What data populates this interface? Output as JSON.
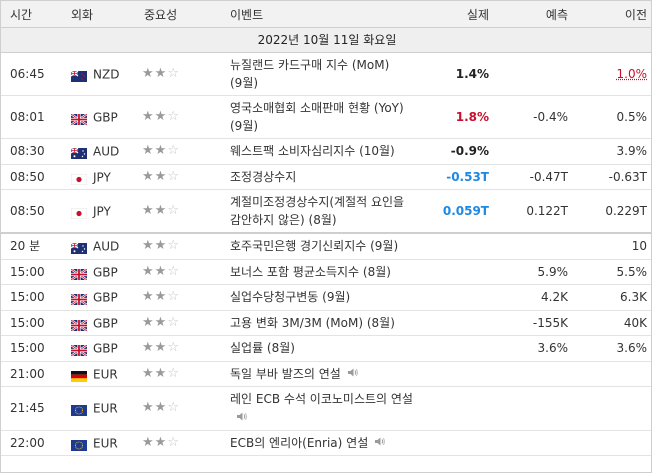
{
  "headers": {
    "time": "시간",
    "currency": "외화",
    "importance": "중요성",
    "event": "이벤트",
    "actual": "실제",
    "forecast": "예측",
    "previous": "이전"
  },
  "day_label": "2022년 10월 11일 화요일",
  "rows": [
    {
      "time": "06:45",
      "flag": "nz",
      "currency": "NZD",
      "stars": 2,
      "event": "뉴질랜드 카드구매 지수 (MoM) (9월)",
      "actual": "1.4%",
      "actual_color": "black",
      "forecast": "",
      "previous": "1.0%",
      "previous_color": "red"
    },
    {
      "time": "08:01",
      "flag": "gb",
      "currency": "GBP",
      "stars": 2,
      "event": "영국소매협회 소매판매 현황 (YoY) (9월)",
      "actual": "1.8%",
      "actual_color": "red",
      "forecast": "-0.4%",
      "previous": "0.5%"
    },
    {
      "time": "08:30",
      "flag": "au",
      "currency": "AUD",
      "stars": 2,
      "event": "웨스트팩 소비자심리지수 (10월)",
      "actual": "-0.9%",
      "actual_color": "black",
      "forecast": "",
      "previous": "3.9%"
    },
    {
      "time": "08:50",
      "flag": "jp",
      "currency": "JPY",
      "stars": 2,
      "event": "조정경상수지",
      "actual": "-0.53T",
      "actual_color": "blue",
      "forecast": "-0.47T",
      "previous": "-0.63T"
    },
    {
      "time": "08:50",
      "flag": "jp",
      "currency": "JPY",
      "stars": 2,
      "event": "계절미조정경상수지(계절적 요인을 감안하지 않은) (8월)",
      "actual": "0.059T",
      "actual_color": "blue",
      "forecast": "0.122T",
      "previous": "0.229T"
    },
    {
      "time": "20 분",
      "flag": "au",
      "currency": "AUD",
      "stars": 2,
      "event": "호주국민은행 경기신뢰지수 (9월)",
      "actual": "",
      "actual_color": "black",
      "forecast": "",
      "previous": "10",
      "gap": true
    },
    {
      "time": "15:00",
      "flag": "gb",
      "currency": "GBP",
      "stars": 2,
      "event": "보너스 포함 평균소득지수 (8월)",
      "actual": "",
      "actual_color": "black",
      "forecast": "5.9%",
      "previous": "5.5%"
    },
    {
      "time": "15:00",
      "flag": "gb",
      "currency": "GBP",
      "stars": 2,
      "event": "실업수당청구변동 (9월)",
      "actual": "",
      "actual_color": "black",
      "forecast": "4.2K",
      "previous": "6.3K"
    },
    {
      "time": "15:00",
      "flag": "gb",
      "currency": "GBP",
      "stars": 2,
      "event": "고용 변화 3M/3M (MoM) (8월)",
      "actual": "",
      "actual_color": "black",
      "forecast": "-155K",
      "previous": "40K"
    },
    {
      "time": "15:00",
      "flag": "gb",
      "currency": "GBP",
      "stars": 2,
      "event": "실업률 (8월)",
      "actual": "",
      "actual_color": "black",
      "forecast": "3.6%",
      "previous": "3.6%"
    },
    {
      "time": "21:00",
      "flag": "de",
      "currency": "EUR",
      "stars": 2,
      "event": "독일 부바 발즈의 연설",
      "actual": "",
      "actual_color": "black",
      "forecast": "",
      "previous": "",
      "speech": true
    },
    {
      "time": "21:45",
      "flag": "eu",
      "currency": "EUR",
      "stars": 2,
      "event": "레인 ECB 수석 이코노미스트의 연설",
      "actual": "",
      "actual_color": "black",
      "forecast": "",
      "previous": "",
      "speech": true
    },
    {
      "time": "22:00",
      "flag": "eu",
      "currency": "EUR",
      "stars": 2,
      "event": "ECB의 엔리아(Enria) 연설",
      "actual": "",
      "actual_color": "black",
      "forecast": "",
      "previous": "",
      "speech": true
    }
  ],
  "icons": {
    "star": "star-icon",
    "speaker": "speaker-icon"
  }
}
